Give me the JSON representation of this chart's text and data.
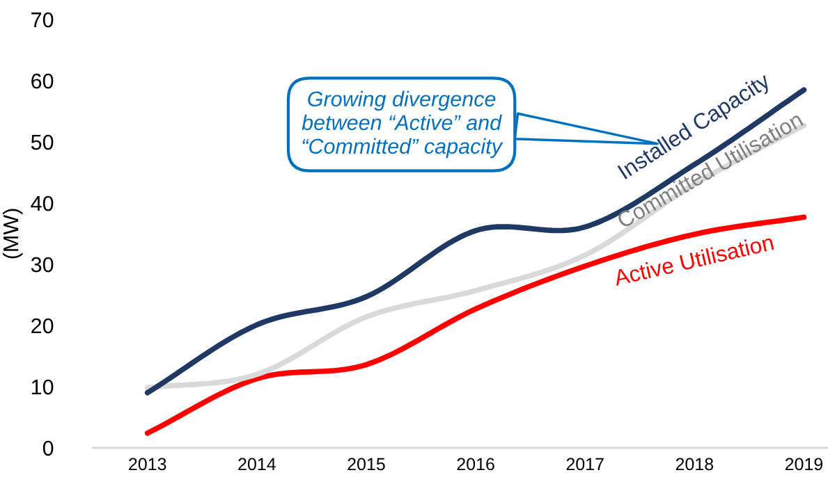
{
  "chart_data": {
    "type": "line",
    "ylabel": "(MW)",
    "categories": [
      "2013",
      "2014",
      "2015",
      "2016",
      "2017",
      "2018",
      "2019"
    ],
    "series": [
      {
        "name": "Installed Capacity",
        "color": "#1f3864",
        "values": [
          9.0,
          20.1,
          24.7,
          35.5,
          36.1,
          46.3,
          58.5
        ]
      },
      {
        "name": "Committed Utilisation",
        "color": "#d9d9d9",
        "values": [
          9.8,
          12.0,
          21.4,
          25.7,
          31.5,
          43.1,
          52.7
        ]
      },
      {
        "name": "Active Utilisation",
        "color": "#ff0000",
        "values": [
          2.4,
          11.3,
          13.6,
          22.7,
          29.7,
          34.9,
          37.7
        ]
      }
    ],
    "ylim": [
      0,
      70
    ],
    "yticks": [
      0,
      10,
      20,
      30,
      40,
      50,
      60,
      70
    ],
    "annotations": [
      "Growing divergence\nbetween “Active” and\n“Committed” capacity"
    ],
    "grid": false,
    "legend": false,
    "marker": "none",
    "line_style": "solid"
  }
}
